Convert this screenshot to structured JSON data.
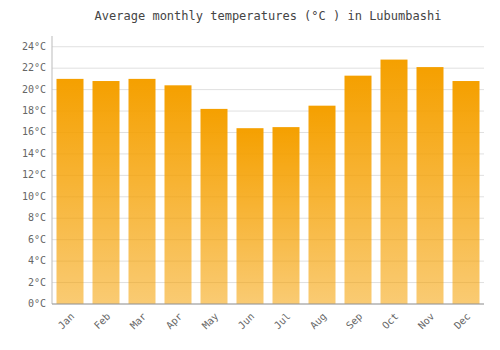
{
  "chart_data": {
    "type": "bar",
    "title": "Average monthly temperatures (°C ) in Lubumbashi",
    "categories": [
      "Jan",
      "Feb",
      "Mar",
      "Apr",
      "May",
      "Jun",
      "Jul",
      "Aug",
      "Sep",
      "Oct",
      "Nov",
      "Dec"
    ],
    "values": [
      21.0,
      20.8,
      21.0,
      20.4,
      18.2,
      16.4,
      16.5,
      18.5,
      21.3,
      22.8,
      22.1,
      20.8
    ],
    "color": "#F5A000",
    "ylim": [
      0,
      25
    ],
    "yticks": [
      {
        "value": 0,
        "label": "0°C"
      },
      {
        "value": 2,
        "label": "2°C"
      },
      {
        "value": 4,
        "label": "4°C"
      },
      {
        "value": 6,
        "label": "6°C"
      },
      {
        "value": 8,
        "label": "8°C"
      },
      {
        "value": 10,
        "label": "10°C"
      },
      {
        "value": 12,
        "label": "12°C"
      },
      {
        "value": 14,
        "label": "14°C"
      },
      {
        "value": 16,
        "label": "16°C"
      },
      {
        "value": 18,
        "label": "18°C"
      },
      {
        "value": 20,
        "label": "20°C"
      },
      {
        "value": 22,
        "label": "22°C"
      },
      {
        "value": 24,
        "label": "24°C"
      }
    ],
    "grid": true
  }
}
